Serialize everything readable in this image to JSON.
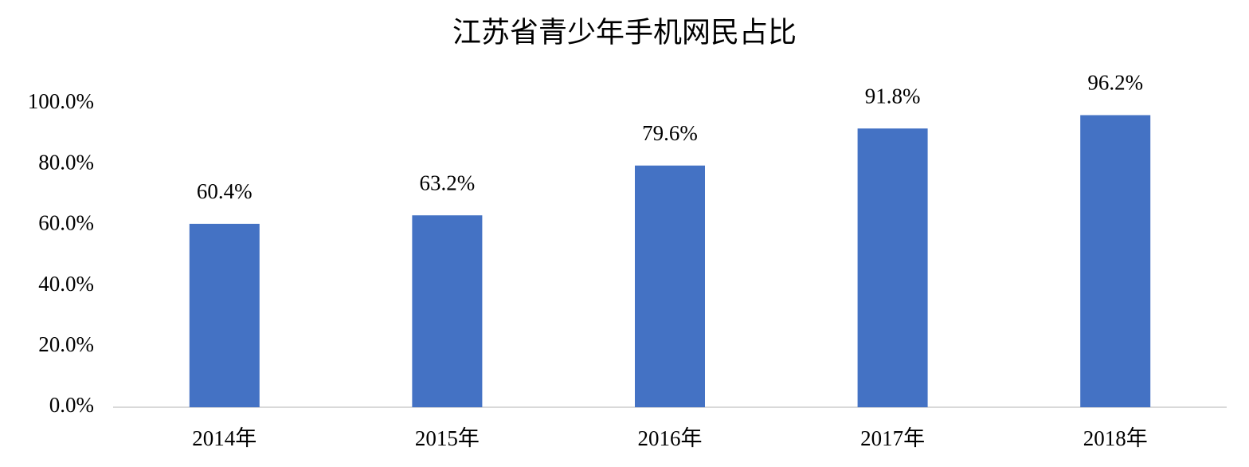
{
  "chart_data": {
    "type": "bar",
    "title": "江苏省青少年手机网民占比",
    "categories": [
      "2014年",
      "2015年",
      "2016年",
      "2017年",
      "2018年"
    ],
    "values": [
      60.4,
      63.2,
      79.6,
      91.8,
      96.2
    ],
    "value_labels": [
      "60.4%",
      "63.2%",
      "79.6%",
      "91.8%",
      "96.2%"
    ],
    "color": "#4472c4",
    "ylim": [
      0,
      100
    ],
    "yticks": [
      {
        "value": 0,
        "label": "0.0%"
      },
      {
        "value": 20,
        "label": "20.0%"
      },
      {
        "value": 40,
        "label": "40.0%"
      },
      {
        "value": 60,
        "label": "60.0%"
      },
      {
        "value": 80,
        "label": "80.0%"
      },
      {
        "value": 100,
        "label": "100.0%"
      }
    ],
    "grid": false
  }
}
